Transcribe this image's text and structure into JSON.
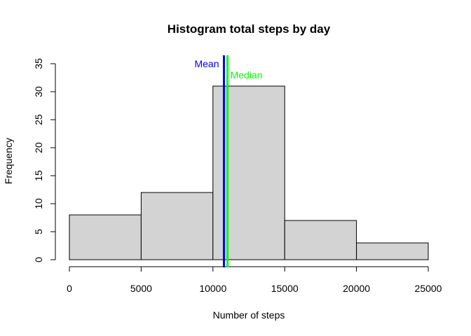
{
  "chart_data": {
    "type": "bar",
    "title": "Histogram total steps by day",
    "xlabel": "Number of steps",
    "ylabel": "Frequency",
    "bins": [
      {
        "from": 0,
        "to": 5000,
        "count": 8
      },
      {
        "from": 5000,
        "to": 10000,
        "count": 12
      },
      {
        "from": 10000,
        "to": 15000,
        "count": 31
      },
      {
        "from": 15000,
        "to": 20000,
        "count": 7
      },
      {
        "from": 20000,
        "to": 25000,
        "count": 3
      }
    ],
    "xlim": [
      0,
      25000
    ],
    "ylim": [
      0,
      35
    ],
    "xticks": [
      "0",
      "5000",
      "10000",
      "15000",
      "20000",
      "25000"
    ],
    "yticks": [
      "0",
      "5",
      "10",
      "15",
      "20",
      "25",
      "30",
      "35"
    ],
    "bar_color": "#d3d3d3",
    "bar_edge": "#000000",
    "grid": false,
    "reference_lines": [
      {
        "label": "Mean",
        "value": 10766,
        "color": "#0000ff"
      },
      {
        "label": "Median",
        "value": 11015,
        "color": "#00ff00"
      }
    ]
  }
}
